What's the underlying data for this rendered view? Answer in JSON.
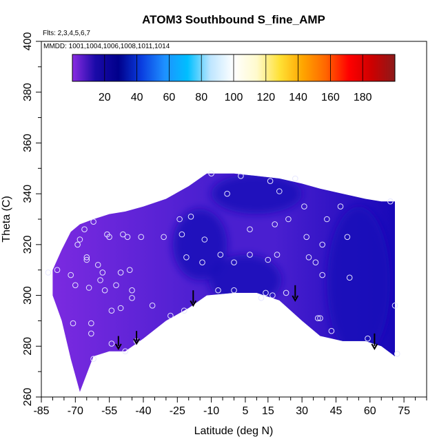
{
  "chart_data": {
    "type": "heatmap",
    "title": "ATOM3 Southbound S_fine_AMP",
    "flights_note": "Flts: 2,3,4,5,6,7",
    "dates_note": "MMDD: 1001,1004,1006,1008,1011,1014",
    "xlabel": "Latitude (deg N)",
    "ylabel": "Theta (C)",
    "xlim": [
      -85,
      85
    ],
    "ylim": [
      260,
      400
    ],
    "x_ticks": [
      -85,
      -70,
      -55,
      -40,
      -25,
      -10,
      5,
      15,
      30,
      45,
      60,
      75
    ],
    "y_ticks": [
      260,
      280,
      300,
      320,
      340,
      360,
      380,
      400
    ],
    "colorbar": {
      "min": 0,
      "max": 200,
      "ticks": [
        20,
        40,
        60,
        80,
        100,
        120,
        140,
        160,
        180
      ],
      "colors": [
        "#8a2be2",
        "#1a0aa8",
        "#00008b",
        "#0a3ee0",
        "#1e90ff",
        "#00bfff",
        "#bfe6ff",
        "#ffffff",
        "#fffacd",
        "#ffe135",
        "#ffa500",
        "#ff6600",
        "#ff0000",
        "#cd0000",
        "#8b1a1a"
      ]
    },
    "field_colors": {
      "low": "#7b2ae0",
      "mid": "#4a1fd0",
      "high": "#1808b8"
    },
    "profiles": [
      {
        "lat": -80,
        "theta_min": 300,
        "theta_max": 310
      },
      {
        "lat": -76,
        "theta_min": 290,
        "theta_max": 318
      },
      {
        "lat": -72,
        "theta_min": 275,
        "theta_max": 325
      },
      {
        "lat": -68,
        "theta_min": 262,
        "theta_max": 328
      },
      {
        "lat": -62,
        "theta_min": 276,
        "theta_max": 330
      },
      {
        "lat": -55,
        "theta_min": 278,
        "theta_max": 332
      },
      {
        "lat": -48,
        "theta_min": 278,
        "theta_max": 333
      },
      {
        "lat": -40,
        "theta_min": 283,
        "theta_max": 335
      },
      {
        "lat": -30,
        "theta_min": 290,
        "theta_max": 338
      },
      {
        "lat": -20,
        "theta_min": 295,
        "theta_max": 343
      },
      {
        "lat": -12,
        "theta_min": 300,
        "theta_max": 348
      },
      {
        "lat": 0,
        "theta_min": 301,
        "theta_max": 348
      },
      {
        "lat": 10,
        "theta_min": 301,
        "theta_max": 347
      },
      {
        "lat": 20,
        "theta_min": 298,
        "theta_max": 346
      },
      {
        "lat": 30,
        "theta_min": 290,
        "theta_max": 344
      },
      {
        "lat": 38,
        "theta_min": 284,
        "theta_max": 342
      },
      {
        "lat": 48,
        "theta_min": 282,
        "theta_max": 340
      },
      {
        "lat": 58,
        "theta_min": 282,
        "theta_max": 338
      },
      {
        "lat": 65,
        "theta_min": 280,
        "theta_max": 337
      },
      {
        "lat": 71,
        "theta_min": 276,
        "theta_max": 337
      }
    ],
    "blue_patches": [
      {
        "lat": 5,
        "theta": 306,
        "dlat": 16,
        "dtheta": 10
      },
      {
        "lat": 55,
        "theta": 305,
        "dlat": 14,
        "dtheta": 30
      },
      {
        "lat": 10,
        "theta": 340,
        "dlat": 20,
        "dtheta": 8
      },
      {
        "lat": -15,
        "theta": 320,
        "dlat": 12,
        "dtheta": 14
      }
    ],
    "observation_points": [
      {
        "lat": -82,
        "theta": 309
      },
      {
        "lat": -78,
        "theta": 310
      },
      {
        "lat": -72,
        "theta": 308
      },
      {
        "lat": -71,
        "theta": 289
      },
      {
        "lat": -70,
        "theta": 304
      },
      {
        "lat": -69,
        "theta": 320
      },
      {
        "lat": -68,
        "theta": 322
      },
      {
        "lat": -66,
        "theta": 326
      },
      {
        "lat": -65,
        "theta": 314
      },
      {
        "lat": -65,
        "theta": 315
      },
      {
        "lat": -64,
        "theta": 303
      },
      {
        "lat": -63,
        "theta": 289
      },
      {
        "lat": -63,
        "theta": 285
      },
      {
        "lat": -62,
        "theta": 329
      },
      {
        "lat": -62,
        "theta": 275
      },
      {
        "lat": -60,
        "theta": 312
      },
      {
        "lat": -59,
        "theta": 306
      },
      {
        "lat": -58,
        "theta": 309
      },
      {
        "lat": -57,
        "theta": 302
      },
      {
        "lat": -56,
        "theta": 324
      },
      {
        "lat": -55,
        "theta": 323
      },
      {
        "lat": -54,
        "theta": 281
      },
      {
        "lat": -54,
        "theta": 294
      },
      {
        "lat": -52,
        "theta": 304
      },
      {
        "lat": -50,
        "theta": 309
      },
      {
        "lat": -50,
        "theta": 295
      },
      {
        "lat": -49,
        "theta": 324
      },
      {
        "lat": -48,
        "theta": 278
      },
      {
        "lat": -47,
        "theta": 323
      },
      {
        "lat": -46,
        "theta": 310
      },
      {
        "lat": -45,
        "theta": 302
      },
      {
        "lat": -45,
        "theta": 299
      },
      {
        "lat": -43,
        "theta": 282
      },
      {
        "lat": -41,
        "theta": 323
      },
      {
        "lat": -36,
        "theta": 296
      },
      {
        "lat": -31,
        "theta": 323
      },
      {
        "lat": -28,
        "theta": 292
      },
      {
        "lat": -24,
        "theta": 330
      },
      {
        "lat": -23,
        "theta": 324
      },
      {
        "lat": -22,
        "theta": 294
      },
      {
        "lat": -21,
        "theta": 315
      },
      {
        "lat": -19,
        "theta": 331
      },
      {
        "lat": -14,
        "theta": 313
      },
      {
        "lat": -13,
        "theta": 322
      },
      {
        "lat": -10,
        "theta": 348
      },
      {
        "lat": -7,
        "theta": 302
      },
      {
        "lat": -6,
        "theta": 316
      },
      {
        "lat": -3,
        "theta": 340
      },
      {
        "lat": 0,
        "theta": 302
      },
      {
        "lat": 0,
        "theta": 313
      },
      {
        "lat": 3,
        "theta": 347
      },
      {
        "lat": 7,
        "theta": 326
      },
      {
        "lat": 7,
        "theta": 316
      },
      {
        "lat": 12,
        "theta": 299
      },
      {
        "lat": 14,
        "theta": 301
      },
      {
        "lat": 15,
        "theta": 314
      },
      {
        "lat": 16,
        "theta": 345
      },
      {
        "lat": 17,
        "theta": 300
      },
      {
        "lat": 18,
        "theta": 328
      },
      {
        "lat": 19,
        "theta": 316
      },
      {
        "lat": 20,
        "theta": 341
      },
      {
        "lat": 23,
        "theta": 301
      },
      {
        "lat": 24,
        "theta": 330
      },
      {
        "lat": 27,
        "theta": 346
      },
      {
        "lat": 31,
        "theta": 335
      },
      {
        "lat": 32,
        "theta": 323
      },
      {
        "lat": 33,
        "theta": 315
      },
      {
        "lat": 36,
        "theta": 313
      },
      {
        "lat": 37,
        "theta": 291
      },
      {
        "lat": 38,
        "theta": 291
      },
      {
        "lat": 39,
        "theta": 308
      },
      {
        "lat": 39,
        "theta": 320
      },
      {
        "lat": 41,
        "theta": 330
      },
      {
        "lat": 43,
        "theta": 286
      },
      {
        "lat": 47,
        "theta": 335
      },
      {
        "lat": 50,
        "theta": 323
      },
      {
        "lat": 51,
        "theta": 307
      },
      {
        "lat": 59,
        "theta": 283
      },
      {
        "lat": 69,
        "theta": 337
      },
      {
        "lat": 71,
        "theta": 296
      },
      {
        "lat": 72,
        "theta": 277
      }
    ],
    "arrows": [
      {
        "lat": -51,
        "theta_top": 284,
        "theta_tip": 279
      },
      {
        "lat": -43,
        "theta_top": 286,
        "theta_tip": 281
      },
      {
        "lat": -18,
        "theta_top": 302,
        "theta_tip": 296
      },
      {
        "lat": 27,
        "theta_top": 304,
        "theta_tip": 298
      },
      {
        "lat": 62,
        "theta_top": 285,
        "theta_tip": 279
      }
    ]
  }
}
